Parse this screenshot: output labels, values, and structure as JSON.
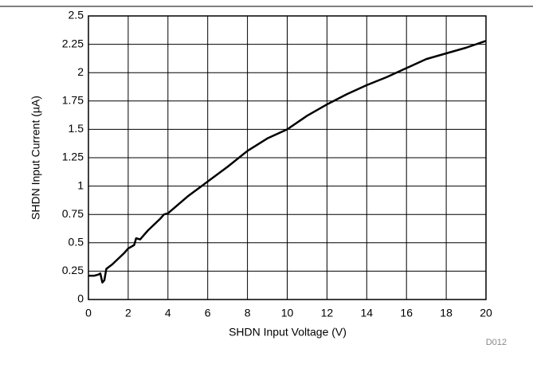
{
  "chart_data": {
    "type": "line",
    "xlabel": "SHDN Input Voltage (V)",
    "ylabel": "SHDN Input Current (µA)",
    "figure_id": "D012",
    "xlim": [
      0,
      20
    ],
    "xticks": [
      0,
      2,
      4,
      6,
      8,
      10,
      12,
      14,
      16,
      18,
      20
    ],
    "ylim": [
      0,
      2.5
    ],
    "yticks": [
      0,
      0.25,
      0.5,
      0.75,
      1,
      1.25,
      1.5,
      1.75,
      2,
      2.25,
      2.5
    ],
    "grid": true,
    "series": [
      {
        "color": "#000000",
        "x": [
          0,
          0.3,
          0.5,
          0.6,
          0.7,
          0.8,
          0.9,
          1.2,
          1.5,
          1.8,
          2,
          2.3,
          2.4,
          2.6,
          2.8,
          3,
          3.3,
          3.6,
          3.8,
          4,
          5,
          6,
          7,
          8,
          9,
          10,
          11,
          12,
          13,
          14,
          15,
          16,
          17,
          18,
          19,
          20
        ],
        "values": [
          0.21,
          0.21,
          0.22,
          0.23,
          0.15,
          0.17,
          0.27,
          0.31,
          0.36,
          0.41,
          0.45,
          0.48,
          0.54,
          0.53,
          0.57,
          0.61,
          0.66,
          0.71,
          0.75,
          0.76,
          0.91,
          1.04,
          1.17,
          1.31,
          1.42,
          1.5,
          1.62,
          1.72,
          1.81,
          1.89,
          1.96,
          2.04,
          2.12,
          2.17,
          2.22,
          2.28
        ]
      }
    ]
  }
}
